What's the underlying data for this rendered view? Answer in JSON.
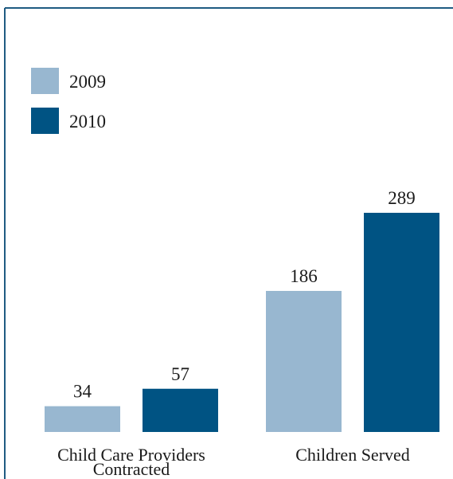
{
  "chart_data": {
    "type": "bar",
    "categories": [
      [
        "Child Care Providers",
        "Contracted"
      ],
      [
        "Children Served"
      ]
    ],
    "series": [
      {
        "name": "2009",
        "color": "#98b7d0",
        "values": [
          34,
          186
        ]
      },
      {
        "name": "2010",
        "color": "#005383",
        "values": [
          57,
          289
        ]
      }
    ],
    "value_labels": [
      [
        "34",
        "186"
      ],
      [
        "57",
        "289"
      ]
    ],
    "legend_position": "top-left",
    "grid": false,
    "ylim": [
      0,
      300
    ]
  }
}
